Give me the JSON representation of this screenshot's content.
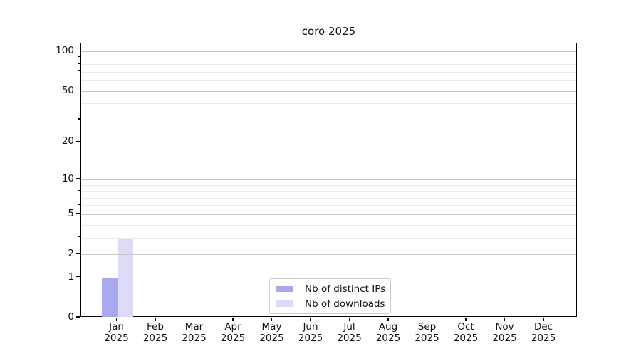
{
  "chart_data": {
    "type": "bar",
    "title": "coro 2025",
    "x_year": "2025",
    "categories": [
      "Jan",
      "Feb",
      "Mar",
      "Apr",
      "May",
      "Jun",
      "Jul",
      "Aug",
      "Sep",
      "Oct",
      "Nov",
      "Dec"
    ],
    "series": [
      {
        "name": "Nb of distinct IPs",
        "color": "#a9a9f0",
        "values": [
          1,
          0,
          0,
          0,
          0,
          0,
          0,
          0,
          0,
          0,
          0,
          0
        ]
      },
      {
        "name": "Nb of downloads",
        "color": "#dcdcf8",
        "values": [
          3,
          0,
          0,
          0,
          0,
          0,
          0,
          0,
          0,
          0,
          0,
          0
        ]
      }
    ],
    "yscale": "log1p",
    "ylim": [
      0,
      115
    ],
    "y_major_ticks": [
      0,
      1,
      2,
      5,
      10,
      20,
      50,
      100
    ],
    "y_minor_ticks": [
      3,
      4,
      6,
      7,
      8,
      9,
      30,
      40,
      60,
      70,
      80,
      90
    ],
    "grid": true,
    "legend": {
      "position": "lower center"
    },
    "colors": {
      "major_grid": "#c7c7c7",
      "minor_grid": "#ebebeb",
      "spine": "#000000",
      "background": "#ffffff"
    }
  }
}
